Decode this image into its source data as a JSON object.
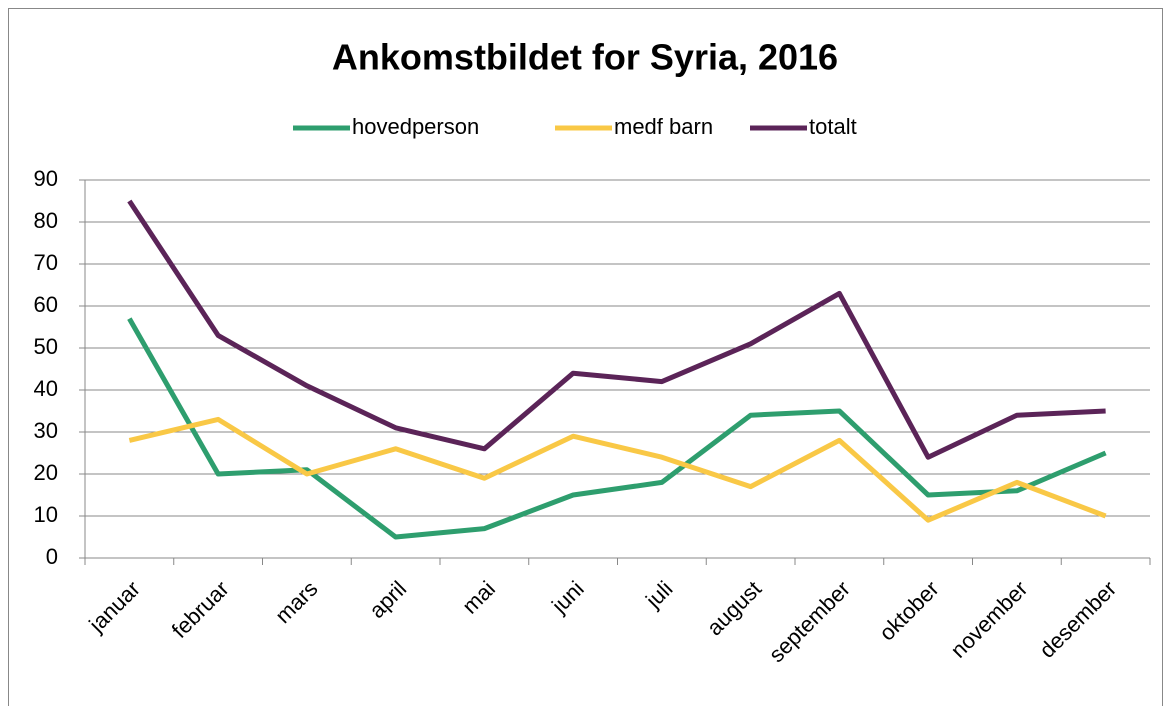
{
  "chart_data": {
    "type": "line",
    "title": "Ankomstbildet for Syria, 2016",
    "categories": [
      "januar",
      "februar",
      "mars",
      "april",
      "mai",
      "juni",
      "juli",
      "august",
      "september",
      "oktober",
      "november",
      "desember"
    ],
    "series": [
      {
        "name": "hovedperson",
        "color": "#2e9e6e",
        "values": [
          57,
          20,
          21,
          5,
          7,
          15,
          18,
          34,
          35,
          15,
          16,
          25
        ]
      },
      {
        "name": "medf barn",
        "color": "#f9c846",
        "values": [
          28,
          33,
          20,
          26,
          19,
          29,
          24,
          17,
          28,
          9,
          18,
          10
        ]
      },
      {
        "name": "totalt",
        "color": "#5b2458",
        "values": [
          85,
          53,
          41,
          31,
          26,
          44,
          42,
          51,
          63,
          24,
          34,
          35
        ]
      }
    ],
    "ylim": [
      0,
      90
    ],
    "yticks": [
      0,
      10,
      20,
      30,
      40,
      50,
      60,
      70,
      80,
      90
    ],
    "grid": true,
    "legend": "top"
  }
}
